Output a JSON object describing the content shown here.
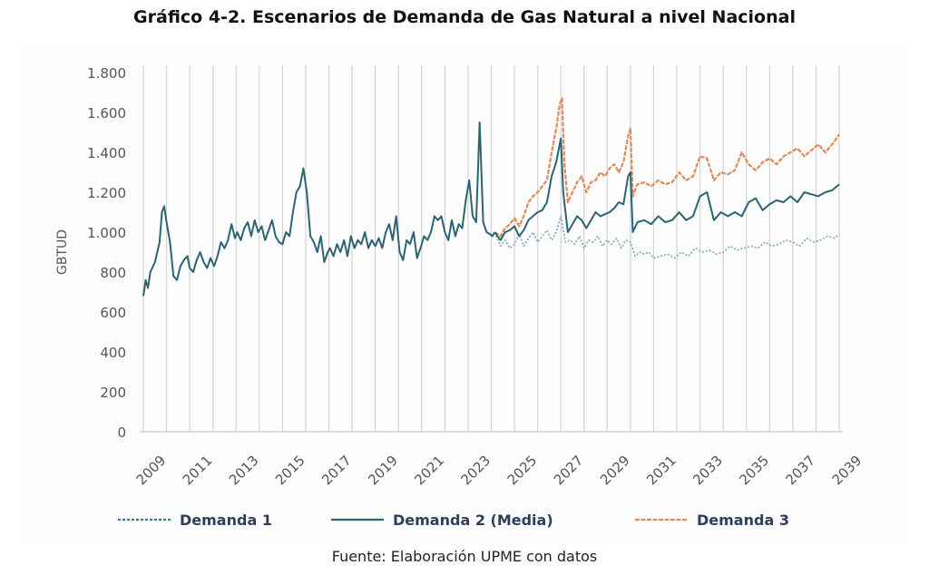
{
  "title": "Gráfico 4-2. Escenarios de Demanda de Gas Natural a nivel Nacional",
  "source": "Fuente: Elaboración UPME con datos",
  "chart_data": {
    "type": "line",
    "title": "Gráfico 4-2. Escenarios de Demanda de Gas Natural a nivel Nacional",
    "xlabel": "",
    "ylabel": "GBTUD",
    "xlim": [
      2009,
      2039
    ],
    "ylim": [
      0,
      1800
    ],
    "y_ticks": [
      0,
      200,
      400,
      600,
      800,
      1000,
      1200,
      1400,
      1600,
      1800
    ],
    "y_tick_labels": [
      "0",
      "200",
      "400",
      "600",
      "800",
      "1.000",
      "1.200",
      "1.400",
      "1.600",
      "1.800"
    ],
    "x_ticks": [
      2009,
      2011,
      2013,
      2015,
      2017,
      2019,
      2021,
      2023,
      2025,
      2027,
      2029,
      2031,
      2033,
      2035,
      2037,
      2039
    ],
    "x_tick_labels": [
      "2009",
      "2011",
      "2013",
      "2015",
      "2017",
      "2019",
      "2021",
      "2023",
      "2025",
      "2027",
      "2029",
      "2031",
      "2033",
      "2035",
      "2037",
      "2039"
    ],
    "grid": "vertical lines at each year",
    "legend_position": "bottom",
    "historical": {
      "x": [
        2009.0,
        2009.1,
        2009.2,
        2009.3,
        2009.5,
        2009.7,
        2009.8,
        2009.9,
        2010.0,
        2010.15,
        2010.3,
        2010.45,
        2010.6,
        2010.75,
        2010.9,
        2011.0,
        2011.15,
        2011.3,
        2011.45,
        2011.6,
        2011.75,
        2011.9,
        2012.05,
        2012.2,
        2012.35,
        2012.5,
        2012.65,
        2012.8,
        2012.95,
        2013.05,
        2013.2,
        2013.35,
        2013.5,
        2013.65,
        2013.8,
        2013.95,
        2014.1,
        2014.25,
        2014.4,
        2014.55,
        2014.7,
        2014.85,
        2015.0,
        2015.15,
        2015.3,
        2015.45,
        2015.6,
        2015.75,
        2015.9,
        2016.05,
        2016.2,
        2016.35,
        2016.5,
        2016.65,
        2016.8,
        2016.95,
        2017.05,
        2017.2,
        2017.35,
        2017.5,
        2017.65,
        2017.8,
        2017.95,
        2018.1,
        2018.25,
        2018.4,
        2018.55,
        2018.7,
        2018.85,
        2019.0,
        2019.15,
        2019.3,
        2019.45,
        2019.6,
        2019.75,
        2019.9,
        2020.05,
        2020.2,
        2020.35,
        2020.5,
        2020.65,
        2020.8,
        2020.95,
        2021.1,
        2021.25,
        2021.4,
        2021.55,
        2021.7,
        2021.85,
        2022.0,
        2022.15,
        2022.3,
        2022.45,
        2022.6,
        2022.75,
        2022.9,
        2023.05,
        2023.2,
        2023.35,
        2023.5,
        2023.65,
        2023.8,
        2023.95,
        2024.05,
        2024.15
      ],
      "y": [
        680,
        760,
        720,
        800,
        850,
        950,
        1100,
        1130,
        1050,
        950,
        780,
        760,
        830,
        860,
        880,
        820,
        800,
        860,
        900,
        850,
        820,
        870,
        830,
        880,
        950,
        920,
        960,
        1040,
        970,
        1000,
        960,
        1020,
        1050,
        980,
        1060,
        1000,
        1030,
        960,
        1010,
        1060,
        980,
        950,
        940,
        1000,
        980,
        1100,
        1200,
        1230,
        1320,
        1200,
        980,
        950,
        900,
        980,
        850,
        900,
        920,
        880,
        940,
        900,
        960,
        880,
        980,
        920,
        960,
        940,
        1000,
        920,
        960,
        930,
        970,
        920,
        1000,
        1040,
        960,
        1080,
        900,
        860,
        960,
        940,
        1000,
        870,
        920,
        980,
        960,
        1000,
        1080,
        1060,
        1080,
        1000,
        960,
        1060,
        980,
        1040,
        1020,
        1160,
        1260,
        1080,
        1050,
        1550,
        1050,
        1000,
        990,
        980,
        1000
      ]
    },
    "series": [
      {
        "name": "Demanda 1",
        "style": "dotted",
        "color": "#7aa8b2",
        "x": [
          2024.15,
          2024.4,
          2024.6,
          2024.8,
          2025.0,
          2025.2,
          2025.4,
          2025.6,
          2025.8,
          2026.0,
          2026.2,
          2026.4,
          2026.6,
          2026.8,
          2027.0,
          2027.2,
          2027.4,
          2027.6,
          2027.8,
          2028.0,
          2028.2,
          2028.4,
          2028.6,
          2028.8,
          2029.0,
          2029.2,
          2029.4,
          2029.6,
          2029.8,
          2030.0,
          2030.2,
          2030.4,
          2030.6,
          2030.8,
          2031.0,
          2031.3,
          2031.6,
          2031.9,
          2032.2,
          2032.5,
          2032.8,
          2033.1,
          2033.4,
          2033.7,
          2034.0,
          2034.3,
          2034.6,
          2034.9,
          2035.2,
          2035.5,
          2035.8,
          2036.1,
          2036.4,
          2036.7,
          2037.0,
          2037.3,
          2037.6,
          2037.9,
          2038.2,
          2038.5,
          2038.8,
          2039.0
        ],
        "y": [
          1000,
          930,
          960,
          920,
          940,
          990,
          930,
          970,
          1000,
          950,
          980,
          1010,
          960,
          1000,
          1080,
          950,
          960,
          940,
          980,
          920,
          960,
          950,
          980,
          930,
          960,
          940,
          970,
          920,
          960,
          950,
          880,
          900,
          890,
          900,
          870,
          880,
          890,
          870,
          900,
          880,
          920,
          900,
          910,
          890,
          900,
          930,
          910,
          920,
          930,
          920,
          950,
          930,
          940,
          960,
          950,
          930,
          970,
          950,
          960,
          980,
          970,
          990
        ]
      },
      {
        "name": "Demanda 2 (Media)",
        "style": "solid",
        "color": "#2b6473",
        "x": [
          2024.15,
          2024.4,
          2024.6,
          2024.8,
          2025.0,
          2025.2,
          2025.4,
          2025.6,
          2025.8,
          2026.0,
          2026.2,
          2026.4,
          2026.6,
          2026.8,
          2027.0,
          2027.1,
          2027.3,
          2027.5,
          2027.7,
          2027.9,
          2028.1,
          2028.3,
          2028.5,
          2028.7,
          2028.9,
          2029.1,
          2029.3,
          2029.5,
          2029.7,
          2029.9,
          2030.0,
          2030.1,
          2030.3,
          2030.6,
          2030.9,
          2031.2,
          2031.5,
          2031.8,
          2032.1,
          2032.4,
          2032.7,
          2033.0,
          2033.3,
          2033.6,
          2033.9,
          2034.2,
          2034.5,
          2034.8,
          2035.1,
          2035.4,
          2035.7,
          2036.0,
          2036.3,
          2036.6,
          2036.9,
          2037.2,
          2037.5,
          2037.8,
          2038.1,
          2038.4,
          2038.7,
          2039.0
        ],
        "y": [
          1000,
          960,
          1000,
          1010,
          1030,
          980,
          1010,
          1060,
          1080,
          1100,
          1110,
          1150,
          1280,
          1350,
          1470,
          1200,
          1000,
          1040,
          1080,
          1060,
          1020,
          1060,
          1100,
          1080,
          1090,
          1100,
          1120,
          1150,
          1140,
          1280,
          1300,
          1000,
          1050,
          1060,
          1040,
          1080,
          1050,
          1060,
          1100,
          1060,
          1080,
          1180,
          1200,
          1060,
          1100,
          1080,
          1100,
          1080,
          1150,
          1170,
          1110,
          1140,
          1160,
          1150,
          1180,
          1150,
          1200,
          1190,
          1180,
          1200,
          1210,
          1240
        ]
      },
      {
        "name": "Demanda 3",
        "style": "dashed",
        "color": "#e0895a",
        "x": [
          2024.15,
          2024.4,
          2024.6,
          2024.8,
          2025.0,
          2025.2,
          2025.4,
          2025.6,
          2025.8,
          2026.0,
          2026.2,
          2026.4,
          2026.6,
          2026.8,
          2026.95,
          2027.05,
          2027.15,
          2027.3,
          2027.5,
          2027.7,
          2027.9,
          2028.1,
          2028.3,
          2028.5,
          2028.7,
          2028.9,
          2029.1,
          2029.3,
          2029.5,
          2029.7,
          2029.9,
          2030.0,
          2030.1,
          2030.3,
          2030.6,
          2030.9,
          2031.2,
          2031.5,
          2031.8,
          2032.1,
          2032.4,
          2032.7,
          2033.0,
          2033.3,
          2033.6,
          2033.9,
          2034.2,
          2034.5,
          2034.8,
          2035.1,
          2035.4,
          2035.7,
          2036.0,
          2036.3,
          2036.6,
          2036.9,
          2037.2,
          2037.5,
          2037.8,
          2038.1,
          2038.4,
          2038.7,
          2039.0
        ],
        "y": [
          1000,
          980,
          1020,
          1040,
          1070,
          1030,
          1080,
          1150,
          1180,
          1200,
          1230,
          1260,
          1400,
          1520,
          1640,
          1670,
          1350,
          1150,
          1200,
          1250,
          1280,
          1200,
          1250,
          1260,
          1300,
          1280,
          1320,
          1340,
          1300,
          1350,
          1480,
          1520,
          1180,
          1240,
          1250,
          1230,
          1260,
          1240,
          1250,
          1300,
          1260,
          1280,
          1380,
          1370,
          1260,
          1300,
          1290,
          1310,
          1400,
          1340,
          1310,
          1350,
          1370,
          1340,
          1380,
          1400,
          1420,
          1380,
          1410,
          1440,
          1400,
          1440,
          1490
        ]
      }
    ]
  }
}
